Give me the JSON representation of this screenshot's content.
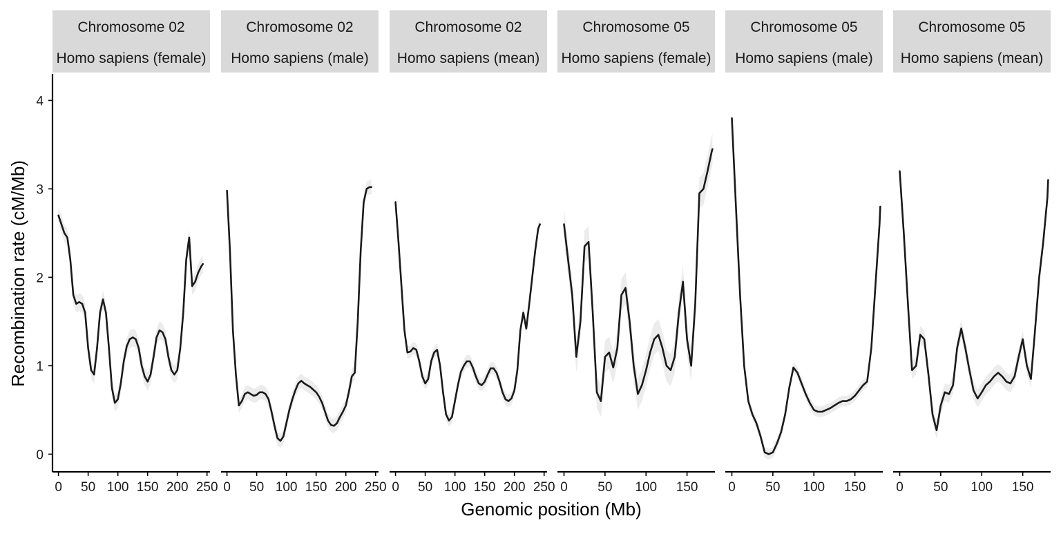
{
  "chart_data": {
    "type": "line",
    "xlabel": "Genomic position (Mb)",
    "ylabel": "Recombination rate (cM/Mb)",
    "ylim": [
      -0.2,
      4.3
    ],
    "y_ticks": [
      0,
      1,
      2,
      3,
      4
    ],
    "y_tick_labels": [
      "0",
      "1",
      "2",
      "3",
      "4"
    ],
    "grid": false,
    "legend": "none",
    "colors": {
      "line": "#1a1a1a",
      "ribbon": "#c8c8c8",
      "strip": "#d9d9d9"
    },
    "panels": [
      {
        "strip": [
          "Chromosome 02",
          "Homo sapiens (female)"
        ],
        "xlim": [
          -10,
          255
        ],
        "x_ticks": [
          0,
          50,
          100,
          150,
          200,
          250
        ],
        "x_tick_labels": [
          "0",
          "50",
          "100",
          "150",
          "200",
          "250"
        ],
        "ribbon_halfwidth": 0.1,
        "x": [
          0,
          5,
          10,
          15,
          20,
          25,
          30,
          35,
          40,
          45,
          50,
          55,
          60,
          65,
          70,
          75,
          80,
          85,
          90,
          95,
          100,
          105,
          110,
          115,
          120,
          125,
          130,
          135,
          140,
          145,
          150,
          155,
          160,
          165,
          170,
          175,
          180,
          185,
          190,
          195,
          200,
          205,
          210,
          215,
          220,
          225,
          230,
          235,
          240,
          243
        ],
        "y": [
          2.7,
          2.6,
          2.5,
          2.45,
          2.2,
          1.8,
          1.7,
          1.72,
          1.7,
          1.6,
          1.2,
          0.95,
          0.9,
          1.2,
          1.6,
          1.75,
          1.6,
          1.2,
          0.75,
          0.58,
          0.62,
          0.8,
          1.05,
          1.22,
          1.3,
          1.32,
          1.3,
          1.2,
          1.0,
          0.88,
          0.82,
          0.9,
          1.1,
          1.32,
          1.4,
          1.38,
          1.3,
          1.1,
          0.95,
          0.9,
          0.95,
          1.2,
          1.6,
          2.2,
          2.45,
          1.9,
          1.95,
          2.05,
          2.12,
          2.15
        ]
      },
      {
        "strip": [
          "Chromosome 02",
          "Homo sapiens (male)"
        ],
        "xlim": [
          -10,
          255
        ],
        "x_ticks": [
          0,
          50,
          100,
          150,
          200,
          250
        ],
        "x_tick_labels": [
          "0",
          "50",
          "100",
          "150",
          "200",
          "250"
        ],
        "ribbon_halfwidth": 0.08,
        "x": [
          0,
          5,
          10,
          15,
          20,
          25,
          30,
          35,
          40,
          45,
          50,
          55,
          60,
          65,
          70,
          75,
          80,
          85,
          90,
          95,
          100,
          105,
          110,
          115,
          120,
          125,
          130,
          135,
          140,
          145,
          150,
          155,
          160,
          165,
          170,
          175,
          180,
          185,
          190,
          195,
          200,
          205,
          210,
          215,
          220,
          225,
          230,
          235,
          240,
          243
        ],
        "y": [
          2.98,
          2.3,
          1.4,
          0.9,
          0.55,
          0.6,
          0.68,
          0.7,
          0.68,
          0.66,
          0.67,
          0.7,
          0.7,
          0.68,
          0.62,
          0.48,
          0.32,
          0.18,
          0.15,
          0.2,
          0.35,
          0.5,
          0.62,
          0.72,
          0.8,
          0.83,
          0.8,
          0.78,
          0.76,
          0.73,
          0.7,
          0.65,
          0.58,
          0.48,
          0.38,
          0.33,
          0.32,
          0.35,
          0.42,
          0.48,
          0.55,
          0.7,
          0.88,
          0.92,
          1.5,
          2.3,
          2.85,
          3.0,
          3.02,
          3.02
        ]
      },
      {
        "strip": [
          "Chromosome 02",
          "Homo sapiens (mean)"
        ],
        "xlim": [
          -10,
          255
        ],
        "x_ticks": [
          0,
          50,
          100,
          150,
          200,
          250
        ],
        "x_tick_labels": [
          "0",
          "50",
          "100",
          "150",
          "200",
          "250"
        ],
        "ribbon_halfwidth": 0.07,
        "x": [
          0,
          5,
          10,
          15,
          20,
          25,
          30,
          35,
          40,
          45,
          50,
          55,
          60,
          65,
          70,
          75,
          80,
          85,
          90,
          95,
          100,
          105,
          110,
          115,
          120,
          125,
          130,
          135,
          140,
          145,
          150,
          155,
          160,
          165,
          170,
          175,
          180,
          185,
          190,
          195,
          200,
          205,
          210,
          215,
          220,
          225,
          230,
          235,
          240,
          243
        ],
        "y": [
          2.85,
          2.4,
          1.9,
          1.4,
          1.15,
          1.16,
          1.2,
          1.18,
          1.05,
          0.88,
          0.8,
          0.85,
          1.05,
          1.15,
          1.18,
          1.0,
          0.7,
          0.45,
          0.38,
          0.42,
          0.6,
          0.78,
          0.93,
          1.0,
          1.05,
          1.05,
          0.98,
          0.88,
          0.8,
          0.78,
          0.82,
          0.9,
          0.97,
          0.97,
          0.92,
          0.82,
          0.7,
          0.62,
          0.6,
          0.63,
          0.72,
          0.95,
          1.4,
          1.6,
          1.42,
          1.7,
          2.0,
          2.3,
          2.55,
          2.6
        ]
      },
      {
        "strip": [
          "Chromosome 05",
          "Homo sapiens (female)"
        ],
        "xlim": [
          -8,
          184
        ],
        "x_ticks": [
          0,
          50,
          100,
          150
        ],
        "x_tick_labels": [
          "0",
          "50",
          "100",
          "150"
        ],
        "ribbon_halfwidth": 0.18,
        "x": [
          0,
          5,
          10,
          15,
          20,
          25,
          30,
          35,
          40,
          45,
          50,
          55,
          60,
          65,
          70,
          75,
          80,
          85,
          90,
          95,
          100,
          105,
          110,
          115,
          120,
          125,
          130,
          135,
          140,
          145,
          150,
          155,
          160,
          165,
          170,
          175,
          180,
          181
        ],
        "y": [
          2.6,
          2.2,
          1.8,
          1.1,
          1.5,
          2.35,
          2.4,
          1.6,
          0.7,
          0.6,
          1.1,
          1.15,
          0.98,
          1.2,
          1.8,
          1.88,
          1.5,
          1.0,
          0.68,
          0.78,
          0.95,
          1.15,
          1.3,
          1.35,
          1.2,
          1.0,
          0.95,
          1.1,
          1.6,
          1.95,
          1.3,
          1.0,
          1.7,
          2.95,
          3.0,
          3.2,
          3.42,
          3.45
        ]
      },
      {
        "strip": [
          "Chromosome 05",
          "Homo sapiens (male)"
        ],
        "xlim": [
          -8,
          184
        ],
        "x_ticks": [
          0,
          50,
          100,
          150
        ],
        "x_tick_labels": [
          "0",
          "50",
          "100",
          "150"
        ],
        "ribbon_halfwidth": 0.06,
        "x": [
          0,
          5,
          10,
          15,
          20,
          25,
          30,
          35,
          40,
          45,
          50,
          55,
          60,
          65,
          70,
          75,
          80,
          85,
          90,
          95,
          100,
          105,
          110,
          115,
          120,
          125,
          130,
          135,
          140,
          145,
          150,
          155,
          160,
          165,
          170,
          175,
          180,
          181
        ],
        "y": [
          3.8,
          2.8,
          1.8,
          1.0,
          0.6,
          0.45,
          0.35,
          0.2,
          0.02,
          0.0,
          0.02,
          0.12,
          0.25,
          0.45,
          0.75,
          0.98,
          0.92,
          0.8,
          0.68,
          0.58,
          0.5,
          0.48,
          0.48,
          0.5,
          0.52,
          0.55,
          0.58,
          0.6,
          0.6,
          0.62,
          0.66,
          0.72,
          0.78,
          0.82,
          1.2,
          1.9,
          2.6,
          2.8
        ]
      },
      {
        "strip": [
          "Chromosome 05",
          "Homo sapiens (mean)"
        ],
        "xlim": [
          -8,
          184
        ],
        "x_ticks": [
          0,
          50,
          100,
          150
        ],
        "x_tick_labels": [
          "0",
          "50",
          "100",
          "150"
        ],
        "ribbon_halfwidth": 0.1,
        "x": [
          0,
          5,
          10,
          15,
          20,
          25,
          30,
          35,
          40,
          45,
          50,
          55,
          60,
          65,
          70,
          75,
          80,
          85,
          90,
          95,
          100,
          105,
          110,
          115,
          120,
          125,
          130,
          135,
          140,
          145,
          150,
          155,
          160,
          165,
          170,
          175,
          180,
          181
        ],
        "y": [
          3.2,
          2.5,
          1.7,
          0.95,
          1.0,
          1.35,
          1.3,
          0.9,
          0.45,
          0.27,
          0.55,
          0.7,
          0.68,
          0.78,
          1.2,
          1.42,
          1.2,
          0.95,
          0.72,
          0.63,
          0.7,
          0.78,
          0.82,
          0.88,
          0.92,
          0.88,
          0.82,
          0.8,
          0.88,
          1.1,
          1.3,
          1.0,
          0.85,
          1.4,
          2.0,
          2.4,
          2.9,
          3.1
        ]
      }
    ]
  }
}
